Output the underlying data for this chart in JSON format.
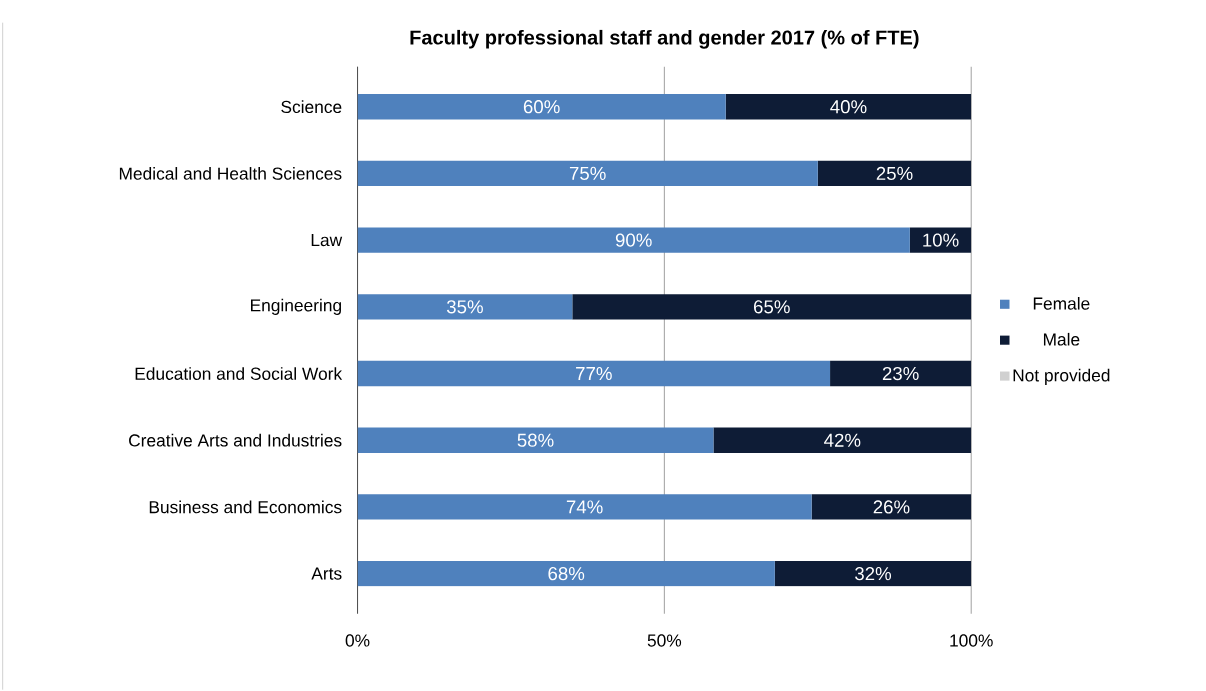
{
  "chart_data": {
    "type": "bar",
    "orientation": "horizontal",
    "stacked": true,
    "title": "Faculty professional staff and gender 2017 (% of FTE)",
    "categories": [
      "Science",
      "Medical and Health Sciences",
      "Law",
      "Engineering",
      "Education and Social Work",
      "Creative Arts and Industries",
      "Business and Economics",
      "Arts"
    ],
    "series": [
      {
        "name": "Female",
        "color": "#4f81bd",
        "values": [
          60,
          75,
          90,
          35,
          77,
          58,
          74,
          68
        ],
        "value_labels": [
          "60%",
          "75%",
          "90%",
          "35%",
          "77%",
          "58%",
          "74%",
          "68%"
        ]
      },
      {
        "name": "Male",
        "color": "#0e1c36",
        "values": [
          40,
          25,
          10,
          65,
          23,
          42,
          26,
          32
        ],
        "value_labels": [
          "40%",
          "25%",
          "10%",
          "65%",
          "23%",
          "42%",
          "26%",
          "32%"
        ]
      },
      {
        "name": "Not provided",
        "color": "#d0d0d0",
        "values": [
          0,
          0,
          0,
          0,
          0,
          0,
          0,
          0
        ]
      }
    ],
    "xlim": [
      0,
      100
    ],
    "xticks": [
      {
        "value": 0,
        "label": "0%"
      },
      {
        "value": 50,
        "label": "50%"
      },
      {
        "value": 100,
        "label": "100%"
      }
    ],
    "grid": "x",
    "legend": "right"
  }
}
